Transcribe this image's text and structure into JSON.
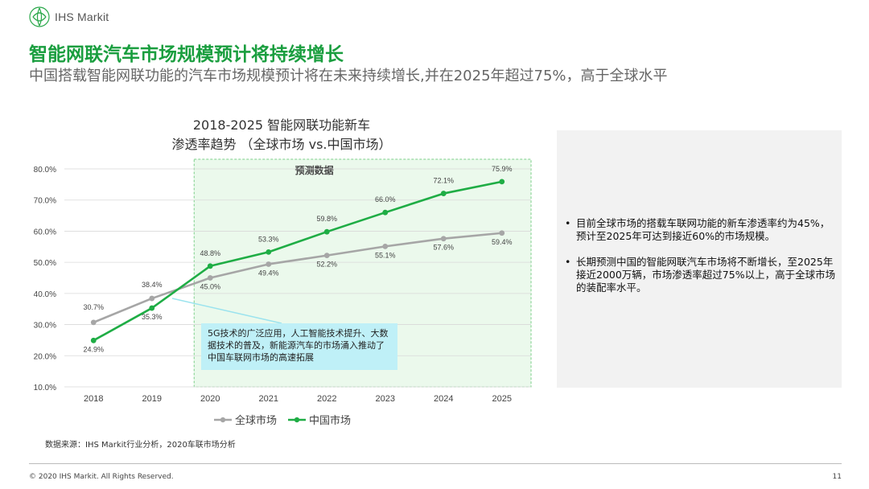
{
  "brand": {
    "logo_text": "IHS Markit"
  },
  "header": {
    "title": "智能网联汽车市场规模预计将持续增长",
    "subtitle": "中国搭载智能网联功能的汽车市场规模预计将在未来持续增长,并在2025年超过75%，高于全球水平"
  },
  "chart_data": {
    "type": "line",
    "title_line1": "2018-2025 智能网联功能新车",
    "title_line2": "渗透率趋势 （全球市场 vs.中国市场）",
    "categories": [
      "2018",
      "2019",
      "2020",
      "2021",
      "2022",
      "2023",
      "2024",
      "2025"
    ],
    "series": [
      {
        "name": "全球市场",
        "color": "#a6a6a6",
        "values": [
          30.7,
          38.4,
          45.0,
          49.4,
          52.2,
          55.1,
          57.6,
          59.4
        ],
        "labels": [
          "30.7%",
          "38.4%",
          "45.0%",
          "49.4%",
          "52.2%",
          "55.1%",
          "57.6%",
          "59.4%"
        ]
      },
      {
        "name": "中国市场",
        "color": "#1fad45",
        "values": [
          24.9,
          35.3,
          48.8,
          53.3,
          59.8,
          66.0,
          72.1,
          75.9
        ],
        "labels": [
          "24.9%",
          "35.3%",
          "48.8%",
          "53.3%",
          "59.8%",
          "66.0%",
          "72.1%",
          "75.9%"
        ]
      }
    ],
    "ylim": [
      10,
      80
    ],
    "yticks": [
      "10.0%",
      "20.0%",
      "30.0%",
      "40.0%",
      "50.0%",
      "60.0%",
      "70.0%",
      "80.0%"
    ],
    "grid": true,
    "forecast_label": "预测数据",
    "forecast_start": "2020",
    "forecast_fill": "#ebf9ec",
    "legend_position": "bottom",
    "annotation": "5G技术的广泛应用，人工智能技术提升、大数据技术的普及，新能源汽车的市场涌入推动了中国车联网市场的高速拓展"
  },
  "notes": [
    "目前全球市场的搭载车联网功能的新车渗透率约为45%，预计至2025年可达到接近60%的市场规模。",
    "长期预测中国的智能网联汽车市场将不断增长，至2025年接近2000万辆，市场渗透率超过75%以上，高于全球市场的装配率水平。"
  ],
  "footer": {
    "source": "数据来源：IHS Markit行业分析，2020车联市场分析",
    "copyright": "© 2020 IHS Markit. All Rights Reserved.",
    "page": "11"
  }
}
